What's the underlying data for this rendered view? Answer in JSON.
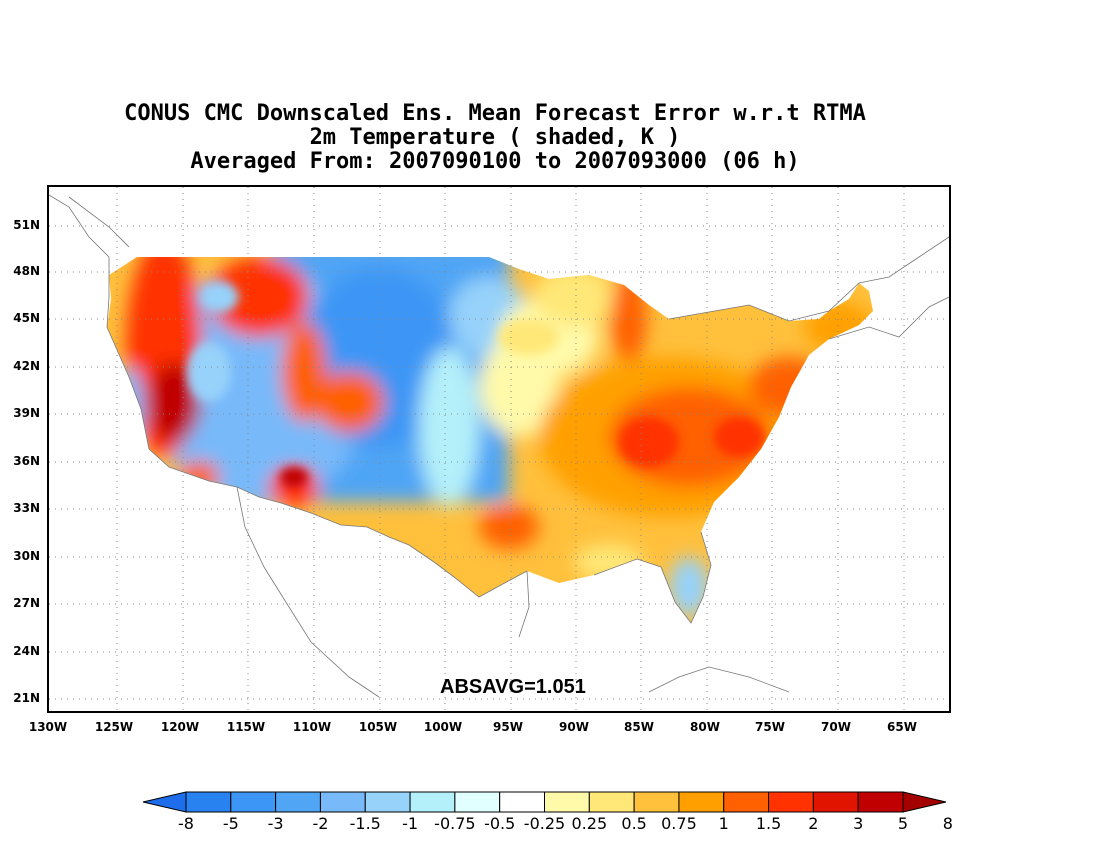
{
  "title": {
    "line1": "CONUS CMC Downscaled Ens. Mean Forecast Error w.r.t RTMA",
    "line2": "2m Temperature ( shaded, K )",
    "line3": "Averaged From: 2007090100 to 2007093000 (06 h)"
  },
  "annotation": "ABSAVG=1.051",
  "lat_labels": [
    "51N",
    "48N",
    "45N",
    "42N",
    "39N",
    "36N",
    "33N",
    "30N",
    "27N",
    "24N",
    "21N"
  ],
  "lon_labels": [
    "130W",
    "125W",
    "120W",
    "115W",
    "110W",
    "105W",
    "100W",
    "95W",
    "90W",
    "85W",
    "80W",
    "75W",
    "70W",
    "65W"
  ],
  "colorbar": {
    "labels": [
      "-8",
      "-5",
      "-3",
      "-2",
      "-1.5",
      "-1",
      "-0.75",
      "-0.5",
      "-0.25",
      "0.25",
      "0.5",
      "0.75",
      "1",
      "1.5",
      "2",
      "3",
      "5",
      "8"
    ],
    "colors": [
      "#1e6eeb",
      "#2882f0",
      "#3c96f5",
      "#50a5f5",
      "#78b9fa",
      "#96d2fa",
      "#b4f0fa",
      "#e1ffff",
      "#ffffff",
      "#fffaaa",
      "#ffe878",
      "#ffc03c",
      "#ffa000",
      "#ff6000",
      "#ff3200",
      "#e11400",
      "#c00000",
      "#a50000"
    ]
  },
  "map": {
    "type": "shaded-contour",
    "variable": "2m temperature forecast error (K)",
    "lat_range": [
      19.6,
      52.4
    ],
    "lon_range": [
      -130,
      -62
    ]
  }
}
